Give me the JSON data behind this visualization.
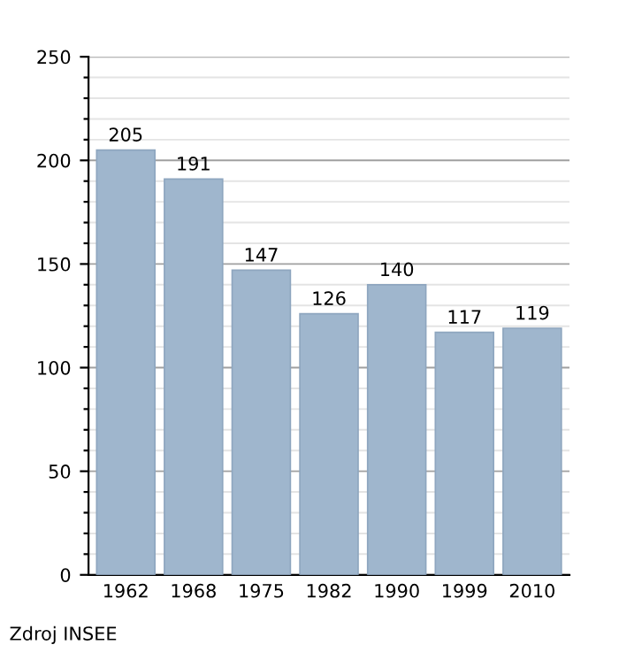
{
  "chart_data": {
    "type": "bar",
    "categories": [
      "1962",
      "1968",
      "1975",
      "1982",
      "1990",
      "1999",
      "2010"
    ],
    "values": [
      205,
      191,
      147,
      126,
      140,
      117,
      119
    ],
    "color": "#9fb6cd",
    "ylim": [
      0,
      250
    ],
    "yticks": [
      0,
      {
        "value": 10,
        "label": null
      },
      {
        "value": 20,
        "label": null
      },
      {
        "value": 30,
        "label": null
      },
      {
        "value": 40,
        "label": null
      },
      50,
      {
        "value": 60,
        "label": null
      },
      {
        "value": 70,
        "label": null
      },
      {
        "value": 80,
        "label": null
      },
      {
        "value": 90,
        "label": null
      },
      100,
      {
        "value": 110,
        "label": null
      },
      {
        "value": 120,
        "label": null
      },
      {
        "value": 130,
        "label": null
      },
      {
        "value": 140,
        "label": null
      },
      150,
      {
        "value": 160,
        "label": null
      },
      {
        "value": 170,
        "label": null
      },
      {
        "value": 180,
        "label": null
      },
      {
        "value": 190,
        "label": null
      },
      200,
      {
        "value": 210,
        "label": null
      },
      {
        "value": 220,
        "label": null
      },
      {
        "value": 230,
        "label": null
      },
      {
        "value": 240,
        "label": null
      },
      250
    ],
    "grid": "y",
    "data_labels": true,
    "annotations": [
      "Zdroj INSEE"
    ]
  }
}
